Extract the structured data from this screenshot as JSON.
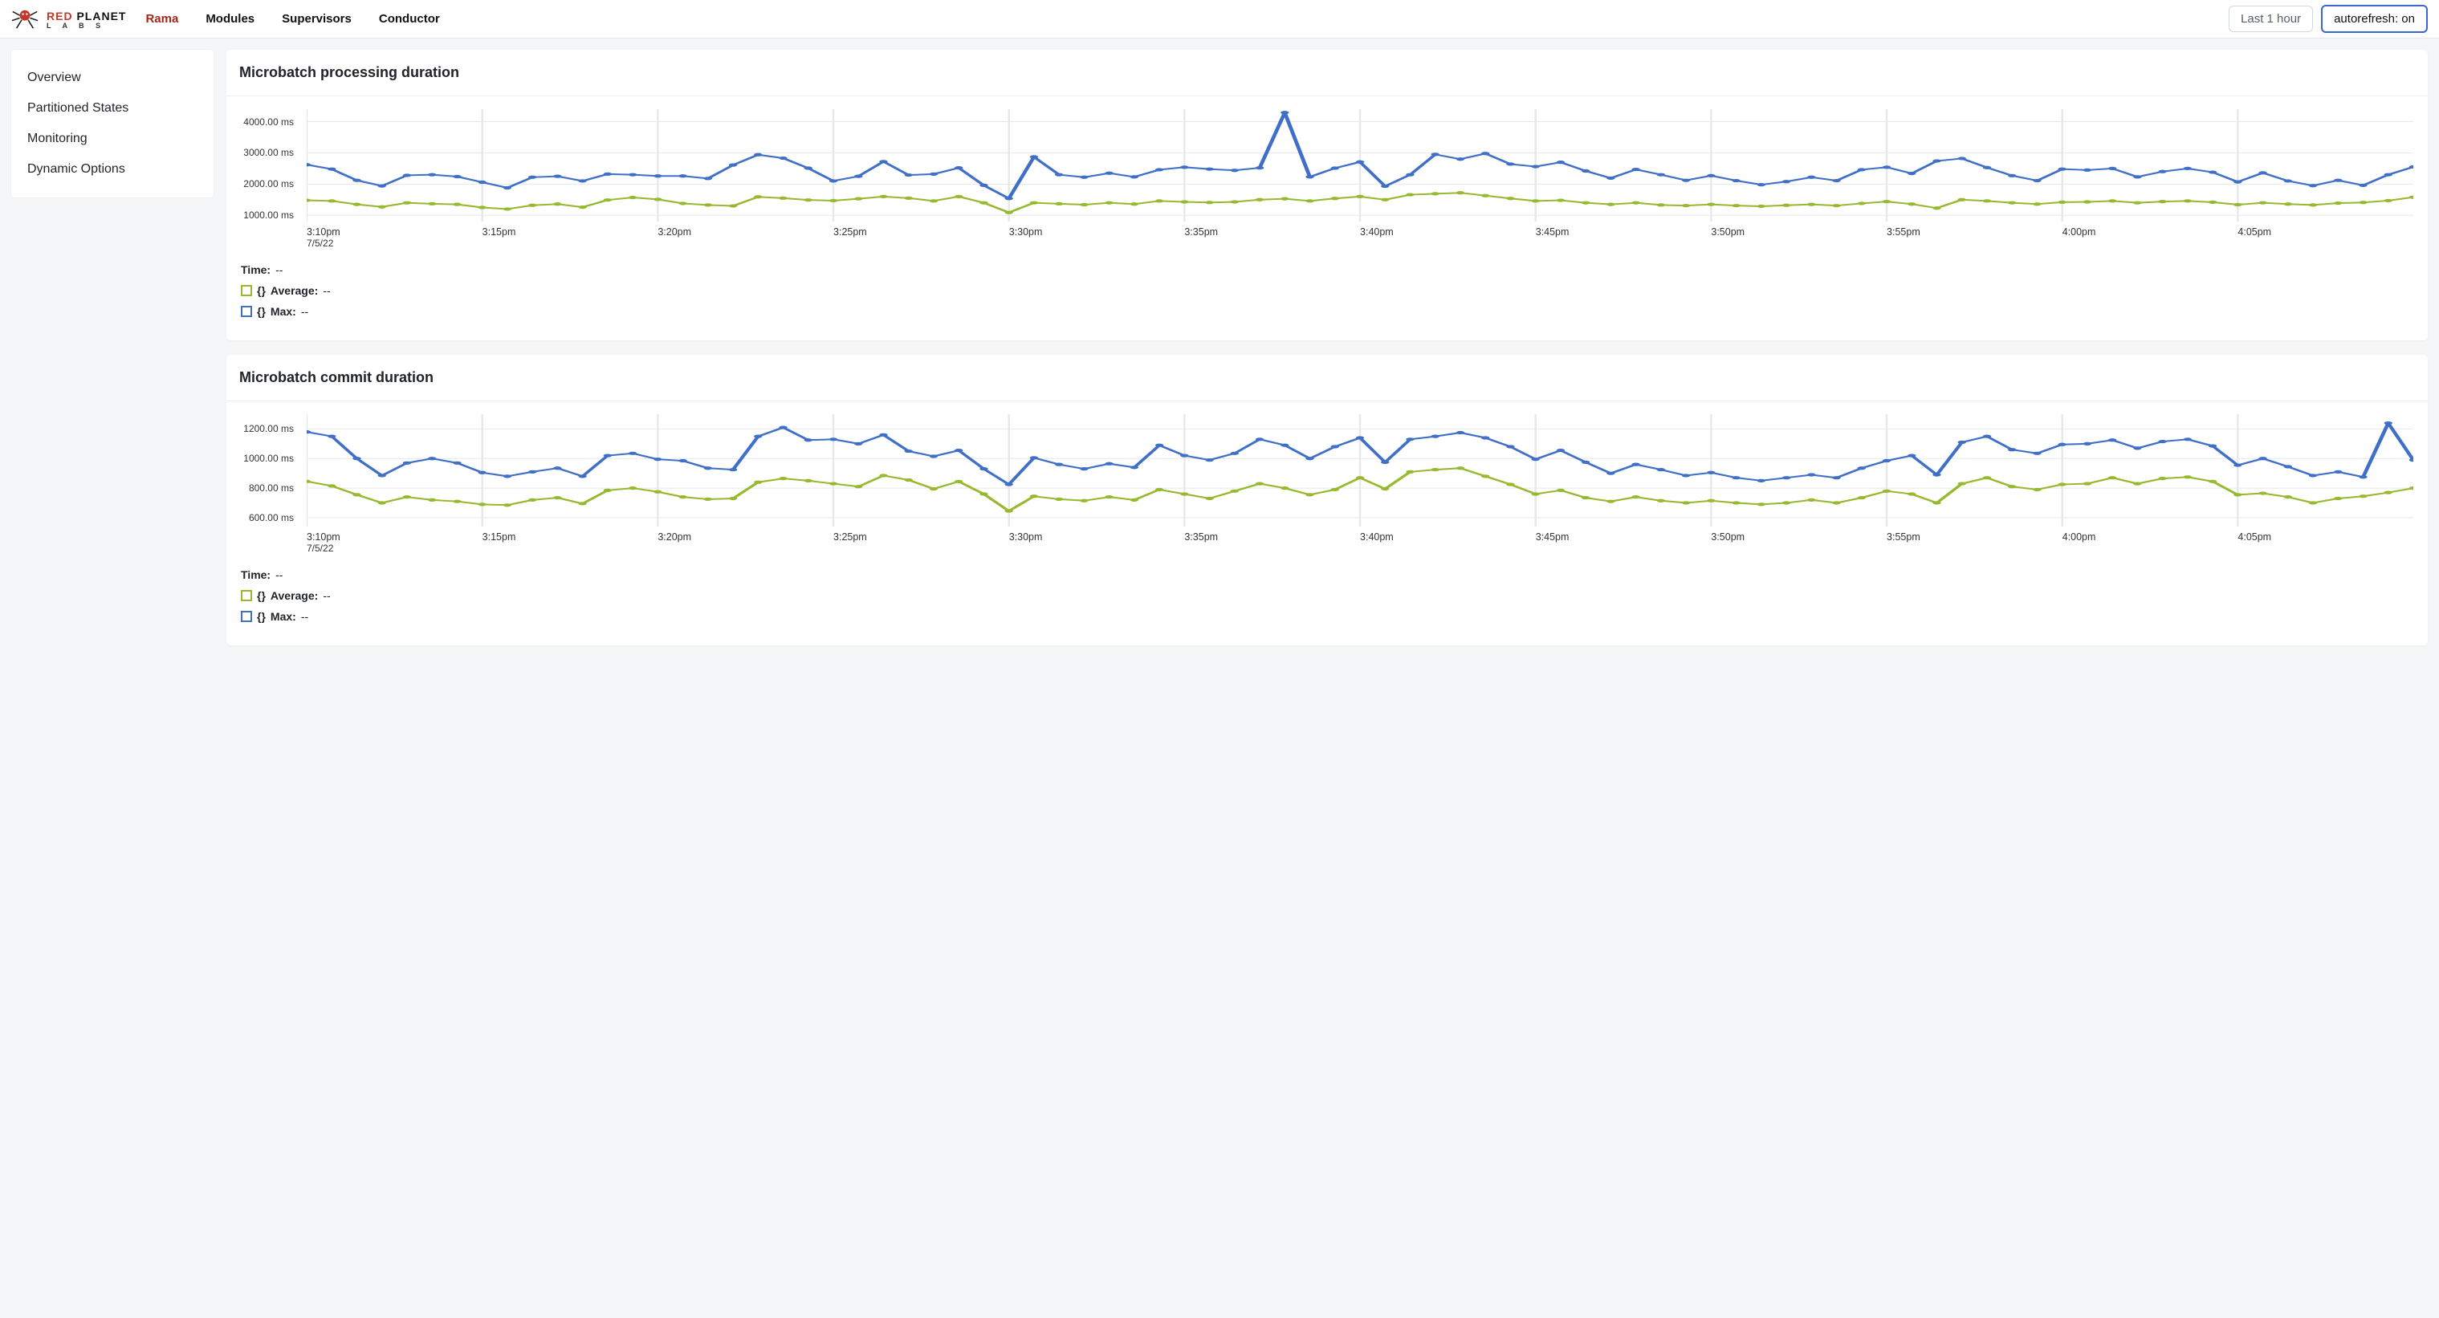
{
  "header": {
    "logo_top_red": "RED",
    "logo_top_black": "PLANET",
    "logo_bottom": "L  A  B  S",
    "nav": [
      {
        "label": "Rama",
        "active": true
      },
      {
        "label": "Modules",
        "active": false
      },
      {
        "label": "Supervisors",
        "active": false
      },
      {
        "label": "Conductor",
        "active": false
      }
    ],
    "time_range_label": "Last 1 hour",
    "autorefresh_label": "autorefresh: on"
  },
  "sidebar": {
    "items": [
      {
        "label": "Overview"
      },
      {
        "label": "Partitioned States"
      },
      {
        "label": "Monitoring"
      },
      {
        "label": "Dynamic Options"
      }
    ]
  },
  "legend_labels": {
    "time": "Time:",
    "avg_prefix": "{}",
    "avg": "Average:",
    "max_prefix": "{}",
    "max": "Max:",
    "dash": "--"
  },
  "colors": {
    "page_bg": "#f5f6f7",
    "card_bg": "#ffffff",
    "border": "#eceef0",
    "grid": "#e6e8ea",
    "series_max": "#3f6fc7",
    "series_avg": "#98b92f",
    "text": "#1f2328",
    "nav_active": "#a6251a",
    "btn_border": "#d0d7de",
    "btn_blue_border": "#3b66d1"
  },
  "charts": [
    {
      "id": "chart-processing",
      "title": "Microbatch processing duration",
      "type": "line",
      "ymin": 800,
      "ymax": 4400,
      "y_ticks": [
        4000,
        3000,
        2000,
        1000
      ],
      "y_tick_labels": [
        "4000.00 ms",
        "3000.00 ms",
        "2000.00 ms",
        "1000.00 ms"
      ],
      "x_tick_labels": [
        "3:10pm",
        "3:15pm",
        "3:20pm",
        "3:25pm",
        "3:30pm",
        "3:35pm",
        "3:40pm",
        "3:45pm",
        "3:50pm",
        "3:55pm",
        "4:00pm",
        "4:05pm"
      ],
      "x_sublabel": "7/5/22",
      "line_width": 2,
      "marker": "circle",
      "marker_size": 3,
      "series": [
        {
          "name": "Max",
          "color": "#3f6fc7",
          "values": [
            2620,
            2480,
            2120,
            1940,
            2280,
            2300,
            2240,
            2060,
            1880,
            2220,
            2250,
            2100,
            2320,
            2300,
            2260,
            2260,
            2180,
            2610,
            2940,
            2830,
            2510,
            2100,
            2250,
            2720,
            2290,
            2320,
            2520,
            1960,
            1540,
            2870,
            2300,
            2220,
            2350,
            2230,
            2460,
            2540,
            2480,
            2440,
            2520,
            4290,
            2230,
            2510,
            2710,
            1930,
            2300,
            2950,
            2800,
            2980,
            2640,
            2560,
            2700,
            2420,
            2190,
            2470,
            2300,
            2120,
            2270,
            2110,
            1980,
            2080,
            2220,
            2110,
            2460,
            2540,
            2340,
            2740,
            2820,
            2530,
            2270,
            2110,
            2480,
            2450,
            2500,
            2230,
            2400,
            2500,
            2380,
            2070,
            2360,
            2100,
            1950,
            2120,
            1960,
            2300,
            2550
          ]
        },
        {
          "name": "Average",
          "color": "#98b92f",
          "values": [
            1480,
            1460,
            1350,
            1270,
            1400,
            1370,
            1350,
            1250,
            1200,
            1320,
            1360,
            1260,
            1490,
            1570,
            1510,
            1380,
            1330,
            1300,
            1590,
            1550,
            1490,
            1470,
            1530,
            1600,
            1550,
            1460,
            1600,
            1400,
            1090,
            1400,
            1370,
            1340,
            1400,
            1360,
            1460,
            1430,
            1410,
            1430,
            1500,
            1530,
            1460,
            1540,
            1600,
            1500,
            1660,
            1690,
            1720,
            1630,
            1540,
            1460,
            1480,
            1400,
            1350,
            1400,
            1330,
            1310,
            1350,
            1310,
            1290,
            1320,
            1350,
            1310,
            1380,
            1440,
            1360,
            1230,
            1500,
            1460,
            1400,
            1360,
            1420,
            1430,
            1460,
            1400,
            1440,
            1460,
            1420,
            1340,
            1400,
            1360,
            1330,
            1390,
            1410,
            1470,
            1580
          ]
        }
      ]
    },
    {
      "id": "chart-commit",
      "title": "Microbatch commit duration",
      "type": "line",
      "ymin": 540,
      "ymax": 1300,
      "y_ticks": [
        1200,
        1000,
        800,
        600
      ],
      "y_tick_labels": [
        "1200.00 ms",
        "1000.00 ms",
        "800.00 ms",
        "600.00 ms"
      ],
      "x_tick_labels": [
        "3:10pm",
        "3:15pm",
        "3:20pm",
        "3:25pm",
        "3:30pm",
        "3:35pm",
        "3:40pm",
        "3:45pm",
        "3:50pm",
        "3:55pm",
        "4:00pm",
        "4:05pm"
      ],
      "x_sublabel": "7/5/22",
      "line_width": 2,
      "marker": "circle",
      "marker_size": 3,
      "series": [
        {
          "name": "Max",
          "color": "#3f6fc7",
          "values": [
            1180,
            1150,
            1000,
            885,
            970,
            1000,
            970,
            905,
            880,
            910,
            935,
            880,
            1020,
            1035,
            995,
            985,
            935,
            925,
            1150,
            1210,
            1125,
            1130,
            1100,
            1160,
            1050,
            1015,
            1055,
            930,
            825,
            1005,
            960,
            930,
            965,
            940,
            1090,
            1020,
            990,
            1035,
            1130,
            1090,
            1000,
            1080,
            1140,
            975,
            1130,
            1150,
            1175,
            1140,
            1080,
            995,
            1055,
            975,
            900,
            960,
            925,
            885,
            905,
            870,
            850,
            870,
            890,
            870,
            935,
            985,
            1020,
            890,
            1110,
            1150,
            1060,
            1035,
            1095,
            1100,
            1125,
            1070,
            1115,
            1130,
            1085,
            955,
            1000,
            945,
            885,
            910,
            875,
            1240,
            990
          ]
        },
        {
          "name": "Average",
          "color": "#98b92f",
          "values": [
            845,
            815,
            755,
            700,
            740,
            720,
            710,
            690,
            685,
            720,
            735,
            695,
            785,
            800,
            775,
            740,
            725,
            730,
            840,
            865,
            850,
            830,
            810,
            885,
            855,
            795,
            845,
            760,
            645,
            745,
            725,
            715,
            740,
            720,
            790,
            760,
            730,
            780,
            830,
            800,
            755,
            790,
            870,
            795,
            910,
            925,
            935,
            880,
            825,
            760,
            785,
            735,
            710,
            740,
            715,
            700,
            715,
            700,
            690,
            700,
            720,
            700,
            735,
            780,
            760,
            700,
            830,
            870,
            810,
            790,
            825,
            830,
            870,
            830,
            865,
            875,
            845,
            755,
            765,
            740,
            700,
            730,
            745,
            770,
            800
          ]
        }
      ]
    }
  ]
}
